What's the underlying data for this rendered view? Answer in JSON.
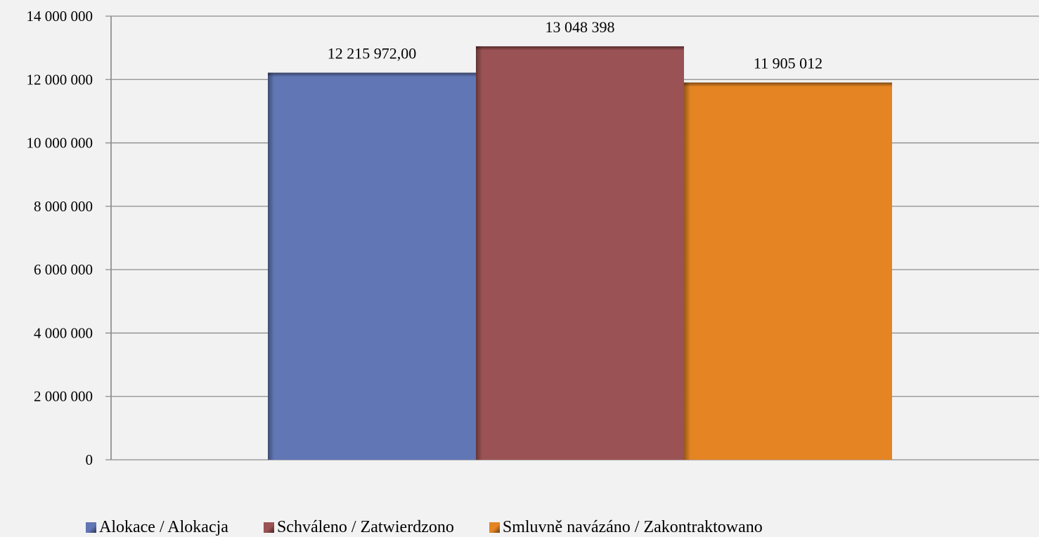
{
  "chart_data": {
    "type": "bar",
    "categories": [
      ""
    ],
    "series": [
      {
        "name": "Alokace / Alokacja",
        "values": [
          12215972.0
        ],
        "label": "12 215 972,00",
        "color": "#6176b5"
      },
      {
        "name": "Schváleno / Zatwierdzono",
        "values": [
          13048398
        ],
        "label": "13 048 398",
        "color": "#9b5254"
      },
      {
        "name": "Smluvně navázáno / Zakontraktowano",
        "values": [
          11905012
        ],
        "label": "11 905 012",
        "color": "#e48423"
      }
    ],
    "title": "",
    "xlabel": "",
    "ylabel": "",
    "ylim": [
      0,
      14000000
    ],
    "yticks": [
      0,
      2000000,
      4000000,
      6000000,
      8000000,
      10000000,
      12000000,
      14000000
    ],
    "ytick_labels": [
      "0",
      "2 000 000",
      "4 000 000",
      "6 000 000",
      "8 000 000",
      "10 000 000",
      "12 000 000",
      "14 000 000"
    ],
    "grid": true,
    "legend_position": "bottom"
  }
}
